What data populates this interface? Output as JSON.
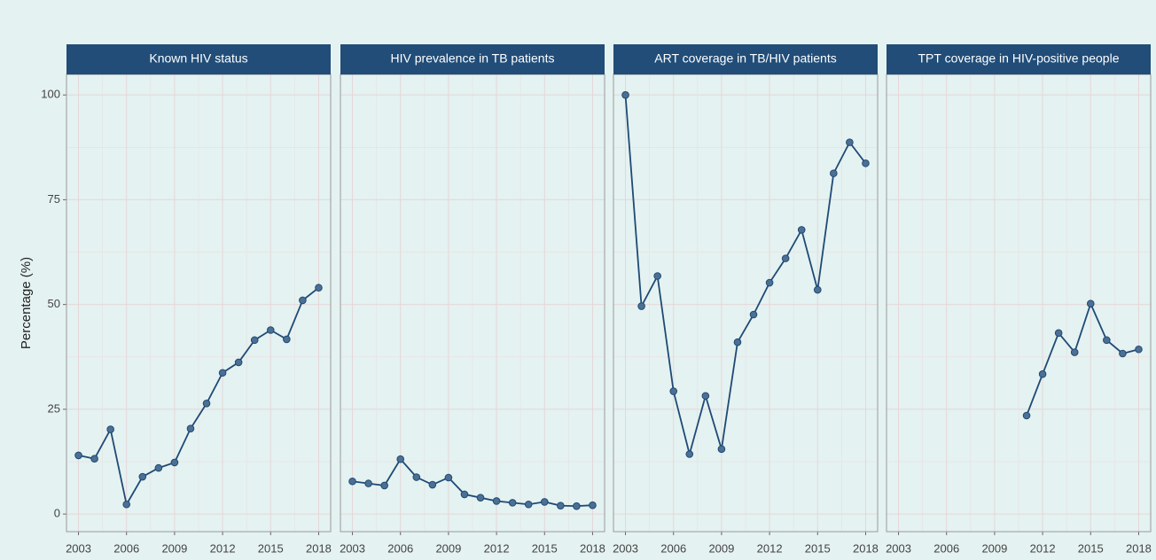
{
  "chart_data": [
    {
      "type": "line",
      "title": "Known HIV status",
      "ylabel": "Percentage (%)",
      "color": "#1f4a75",
      "grid": true,
      "x": [
        2003,
        2004,
        2005,
        2006,
        2007,
        2008,
        2009,
        2010,
        2011,
        2012,
        2013,
        2014,
        2015,
        2016,
        2017,
        2018
      ],
      "values": [
        14,
        13.2,
        20.2,
        2.3,
        8.9,
        11,
        12.3,
        20.4,
        26.4,
        33.7,
        36.2,
        41.5,
        43.9,
        41.7,
        51,
        54
      ],
      "xlim": [
        2002.25,
        2018.75
      ],
      "xticks": [
        2003,
        2006,
        2009,
        2012,
        2015,
        2018
      ],
      "ylim": [
        -4.2,
        104.9
      ],
      "yticks": [
        0,
        25,
        50,
        75,
        100
      ]
    },
    {
      "type": "line",
      "title": "HIV prevalence in TB patients",
      "color": "#1f4a75",
      "grid": true,
      "x": [
        2003,
        2004,
        2005,
        2006,
        2007,
        2008,
        2009,
        2010,
        2011,
        2012,
        2013,
        2014,
        2015,
        2016,
        2017,
        2018
      ],
      "values": [
        7.8,
        7.3,
        6.8,
        13.1,
        8.8,
        7,
        8.7,
        4.7,
        3.9,
        3.1,
        2.7,
        2.3,
        2.9,
        2,
        1.9,
        2.1
      ],
      "xlim": [
        2002.25,
        2018.75
      ],
      "xticks": [
        2003,
        2006,
        2009,
        2012,
        2015,
        2018
      ],
      "ylim": [
        -4.2,
        104.9
      ],
      "yticks": [
        0,
        25,
        50,
        75,
        100
      ]
    },
    {
      "type": "line",
      "title": "ART coverage in TB/HIV patients",
      "color": "#1f4a75",
      "grid": true,
      "x": [
        2003,
        2004,
        2005,
        2006,
        2007,
        2008,
        2009,
        2010,
        2011,
        2012,
        2013,
        2014,
        2015,
        2016,
        2017,
        2018
      ],
      "values": [
        100,
        49.6,
        56.8,
        29.3,
        14.3,
        28.2,
        15.5,
        41,
        47.6,
        55.2,
        61,
        67.8,
        53.5,
        81.3,
        88.7,
        83.7
      ],
      "xlim": [
        2002.25,
        2018.75
      ],
      "xticks": [
        2003,
        2006,
        2009,
        2012,
        2015,
        2018
      ],
      "ylim": [
        -4.2,
        104.9
      ],
      "yticks": [
        0,
        25,
        50,
        75,
        100
      ]
    },
    {
      "type": "line",
      "title": "TPT coverage in HIV-positive people",
      "color": "#1f4a75",
      "grid": true,
      "x": [
        2003,
        2004,
        2005,
        2006,
        2007,
        2008,
        2009,
        2010,
        2011,
        2012,
        2013,
        2014,
        2015,
        2016,
        2017,
        2018
      ],
      "values": [
        null,
        null,
        null,
        null,
        null,
        null,
        null,
        null,
        23.5,
        33.4,
        43.2,
        38.6,
        50.2,
        41.5,
        38.3,
        39.3
      ],
      "xlim": [
        2002.25,
        2018.75
      ],
      "xticks": [
        2003,
        2006,
        2009,
        2012,
        2015,
        2018
      ],
      "ylim": [
        -4.2,
        104.9
      ],
      "yticks": [
        0,
        25,
        50,
        75,
        100
      ]
    }
  ]
}
